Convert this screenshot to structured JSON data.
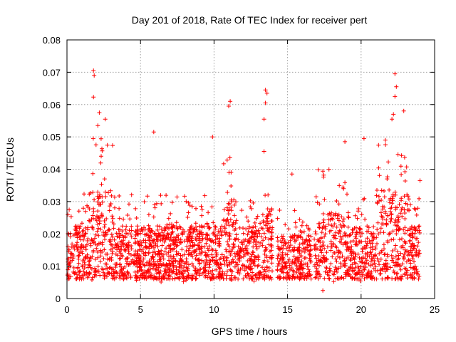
{
  "chart_data": {
    "type": "scatter",
    "title": "Day 201 of 2018, Rate Of TEC Index for receiver pert",
    "xlabel": "GPS time / hours",
    "ylabel": "ROTI / TECUs",
    "xlim": [
      0,
      25
    ],
    "ylim": [
      0,
      0.08
    ],
    "x_ticks": [
      0,
      5,
      10,
      15,
      20,
      25
    ],
    "x_tick_labels": [
      "0",
      "5",
      "10",
      "15",
      "20",
      "25"
    ],
    "y_ticks": [
      0,
      0.01,
      0.02,
      0.03,
      0.04,
      0.05,
      0.06,
      0.07,
      0.08
    ],
    "y_tick_labels": [
      "0",
      "0.01",
      "0.02",
      "0.03",
      "0.04",
      "0.05",
      "0.06",
      "0.07",
      "0.08"
    ],
    "grid": true,
    "marker": "+",
    "color": "#ff0000",
    "series_shape": {
      "gap_hours": [
        [
          14.0,
          14.3
        ],
        [
          16.6,
          16.8
        ]
      ],
      "data_end_hour": 24.0,
      "notable_points": [
        {
          "x": 1.8,
          "y": 0.0705
        },
        {
          "x": 1.85,
          "y": 0.069
        },
        {
          "x": 1.8,
          "y": 0.0623
        },
        {
          "x": 2.2,
          "y": 0.0575
        },
        {
          "x": 2.6,
          "y": 0.0555
        },
        {
          "x": 2.1,
          "y": 0.0535
        },
        {
          "x": 5.9,
          "y": 0.0515
        },
        {
          "x": 11.1,
          "y": 0.061
        },
        {
          "x": 11.0,
          "y": 0.0595
        },
        {
          "x": 13.5,
          "y": 0.0645
        },
        {
          "x": 13.6,
          "y": 0.0635
        },
        {
          "x": 13.5,
          "y": 0.0605
        },
        {
          "x": 13.4,
          "y": 0.0555
        },
        {
          "x": 13.4,
          "y": 0.0455
        },
        {
          "x": 22.3,
          "y": 0.0695
        },
        {
          "x": 22.4,
          "y": 0.0655
        },
        {
          "x": 22.3,
          "y": 0.0625
        },
        {
          "x": 22.2,
          "y": 0.057
        },
        {
          "x": 22.9,
          "y": 0.058
        },
        {
          "x": 22.1,
          "y": 0.0555
        },
        {
          "x": 9.9,
          "y": 0.05
        },
        {
          "x": 18.9,
          "y": 0.0485
        },
        {
          "x": 20.2,
          "y": 0.0495
        },
        {
          "x": 17.4,
          "y": 0.0025
        },
        {
          "x": 15.3,
          "y": 0.0385
        },
        {
          "x": 24.0,
          "y": 0.0365
        }
      ]
    }
  }
}
